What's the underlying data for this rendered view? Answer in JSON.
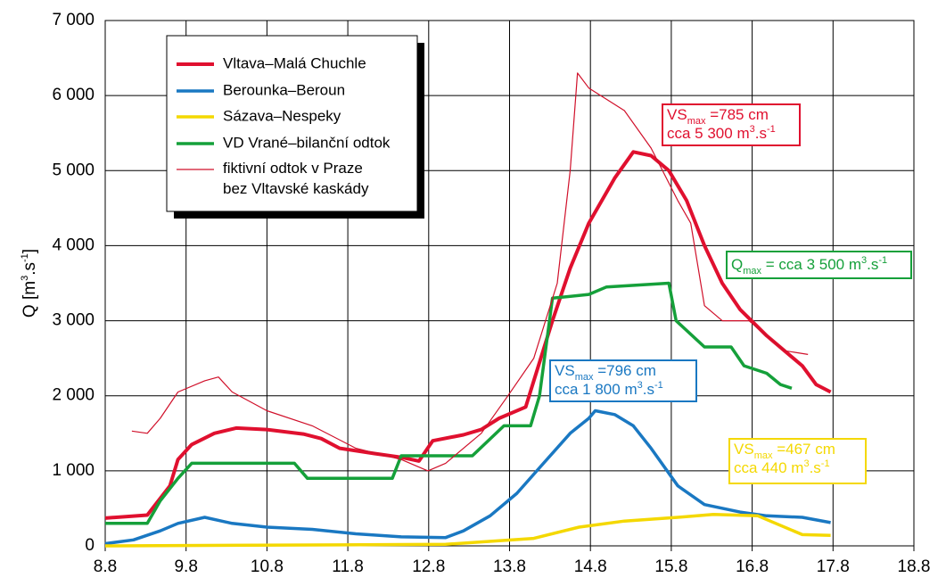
{
  "chart_data": {
    "type": "line",
    "y_label": [
      {
        "t": "Q [m"
      },
      {
        "t": "3",
        "sup": true
      },
      {
        "t": ".s"
      },
      {
        "t": "-1",
        "sup": true
      },
      {
        "t": "]"
      }
    ],
    "xlim": [
      8,
      18
    ],
    "xticks": [
      {
        "value": 8,
        "label": "8.8"
      },
      {
        "value": 9,
        "label": "9.8"
      },
      {
        "value": 10,
        "label": "10.8"
      },
      {
        "value": 11,
        "label": "11.8"
      },
      {
        "value": 12,
        "label": "12.8"
      },
      {
        "value": 13,
        "label": "13.8"
      },
      {
        "value": 14,
        "label": "14.8"
      },
      {
        "value": 15,
        "label": "15.8"
      },
      {
        "value": 16,
        "label": "16.8"
      },
      {
        "value": 17,
        "label": "17.8"
      },
      {
        "value": 18,
        "label": "18.8"
      }
    ],
    "ylim": [
      0,
      7000
    ],
    "yticks": [
      0,
      {
        "value": 1000,
        "label": "1 000"
      },
      {
        "value": 2000,
        "label": "2 000"
      },
      {
        "value": 3000,
        "label": "3 000"
      },
      {
        "value": 4000,
        "label": "4 000"
      },
      {
        "value": 5000,
        "label": "5 000"
      },
      {
        "value": 6000,
        "label": "6 000"
      },
      {
        "value": 7000,
        "label": "7 000"
      }
    ],
    "grid": true,
    "series": [
      {
        "name": "Vltava–Malá Chuchle",
        "color": "#e0102f",
        "width": 4,
        "x": [
          8,
          8.52,
          8.8,
          8.9,
          9.07,
          9.35,
          9.62,
          10,
          10.45,
          10.67,
          10.9,
          11.33,
          11.66,
          11.88,
          12.05,
          12.43,
          12.65,
          12.87,
          13.2,
          13.3,
          13.53,
          13.75,
          13.98,
          14.3,
          14.53,
          14.75,
          14.97,
          15.19,
          15.41,
          15.63,
          15.85,
          16.18,
          16.62,
          16.79,
          16.97
        ],
        "values": [
          370,
          410,
          800,
          1150,
          1350,
          1500,
          1570,
          1550,
          1490,
          1430,
          1300,
          1230,
          1180,
          1130,
          1400,
          1480,
          1550,
          1700,
          1850,
          2200,
          3000,
          3700,
          4300,
          4900,
          5250,
          5200,
          5000,
          4600,
          4000,
          3500,
          3150,
          2800,
          2400,
          2150,
          2050
        ]
      },
      {
        "name": "Berounka–Beroun",
        "color": "#1a78c2",
        "width": 3.5,
        "x": [
          8,
          8.35,
          8.68,
          8.9,
          9.23,
          9.57,
          10,
          10.56,
          11.1,
          11.66,
          12.21,
          12.43,
          12.76,
          13.09,
          13.42,
          13.75,
          13.98,
          14.06,
          14.3,
          14.53,
          14.75,
          15.08,
          15.41,
          15.85,
          16.18,
          16.62,
          16.97
        ],
        "values": [
          30,
          80,
          200,
          300,
          380,
          300,
          250,
          220,
          160,
          120,
          110,
          200,
          400,
          700,
          1100,
          1500,
          1700,
          1800,
          1750,
          1600,
          1300,
          800,
          550,
          450,
          400,
          380,
          310
        ]
      },
      {
        "name": "Sázava–Nespeky",
        "color": "#f4d800",
        "width": 3.5,
        "x": [
          8,
          12.21,
          13.3,
          13.86,
          14.42,
          15.08,
          15.52,
          16.07,
          16.62,
          16.97
        ],
        "values": [
          0,
          20,
          100,
          250,
          330,
          380,
          420,
          400,
          150,
          140
        ]
      },
      {
        "name": "VD Vrané–bilanční odtok",
        "color": "#15a03a",
        "width": 3.5,
        "x": [
          8,
          8.52,
          8.68,
          8.9,
          9.07,
          10.34,
          10.5,
          11.55,
          11.66,
          12.54,
          12.93,
          13.26,
          13.37,
          13.53,
          13.98,
          14.2,
          14.97,
          15.06,
          15.41,
          15.74,
          15.9,
          16.18,
          16.35,
          16.49
        ],
        "values": [
          300,
          300,
          600,
          900,
          1100,
          1100,
          900,
          900,
          1200,
          1200,
          1600,
          1600,
          2000,
          3300,
          3350,
          3450,
          3500,
          3000,
          2650,
          2650,
          2400,
          2300,
          2150,
          2100
        ]
      },
      {
        "name": "fiktivní odtok v Praze\nbez Vltavské kaskády",
        "color": "#d0102a",
        "width": 1.2,
        "x": [
          8.33,
          8.52,
          8.68,
          8.9,
          9.23,
          9.4,
          9.57,
          10,
          10.56,
          11.1,
          11.66,
          11.99,
          12.21,
          12.65,
          12.98,
          13.3,
          13.59,
          13.75,
          13.84,
          13.98,
          14.42,
          14.75,
          15.08,
          15.24,
          15.41,
          15.63,
          15.96,
          16.4,
          16.69
        ],
        "values": [
          1530,
          1500,
          1700,
          2050,
          2200,
          2250,
          2050,
          1800,
          1600,
          1300,
          1150,
          1000,
          1100,
          1500,
          2000,
          2500,
          3500,
          5000,
          6300,
          6100,
          5800,
          5300,
          4600,
          4300,
          3200,
          3000,
          3000,
          2600,
          2550
        ]
      }
    ],
    "annotations": [
      {
        "color": "#e0102f",
        "lines": [
          [
            {
              "t": "VS"
            },
            {
              "t": "max",
              "sub": true
            },
            {
              "t": " =785 cm"
            }
          ],
          [
            {
              "t": "cca 5 300 m"
            },
            {
              "t": "3",
              "sup": true
            },
            {
              "t": ".s"
            },
            {
              "t": "-1",
              "sup": true
            }
          ]
        ]
      },
      {
        "color": "#15a03a",
        "lines": [
          [
            {
              "t": "Q"
            },
            {
              "t": "max",
              "sub": true
            },
            {
              "t": " = cca 3 500 m"
            },
            {
              "t": "3",
              "sup": true
            },
            {
              "t": ".s"
            },
            {
              "t": "-1",
              "sup": true
            }
          ]
        ]
      },
      {
        "color": "#1a78c2",
        "lines": [
          [
            {
              "t": "VS"
            },
            {
              "t": "max",
              "sub": true
            },
            {
              "t": " =796 cm"
            }
          ],
          [
            {
              "t": "cca 1 800 m"
            },
            {
              "t": "3",
              "sup": true
            },
            {
              "t": ".s"
            },
            {
              "t": "-1",
              "sup": true
            }
          ]
        ]
      },
      {
        "color": "#f4d800",
        "lines": [
          [
            {
              "t": "VS"
            },
            {
              "t": "max",
              "sub": true
            },
            {
              "t": " =467 cm"
            }
          ],
          [
            {
              "t": "cca 440 m"
            },
            {
              "t": "3",
              "sup": true
            },
            {
              "t": ".s"
            },
            {
              "t": "-1",
              "sup": true
            }
          ]
        ]
      }
    ]
  }
}
